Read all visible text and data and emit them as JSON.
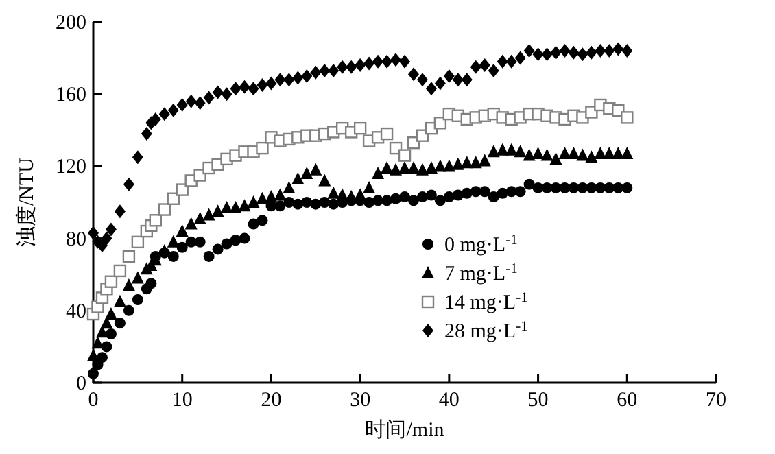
{
  "chart_data": {
    "type": "scatter",
    "xlabel": "时间/min",
    "ylabel": "浊度/NTU",
    "xlim": [
      0,
      70
    ],
    "ylim": [
      0,
      200
    ],
    "xticks": [
      0,
      10,
      20,
      30,
      40,
      50,
      60,
      70
    ],
    "yticks": [
      0,
      40,
      80,
      120,
      160,
      200
    ],
    "legend": "right",
    "grid": false,
    "x": [
      0,
      0.5,
      1,
      1.5,
      2,
      3,
      4,
      5,
      6,
      6.5,
      7,
      8,
      9,
      10,
      11,
      12,
      13,
      14,
      15,
      16,
      17,
      18,
      19,
      20,
      21,
      22,
      23,
      24,
      25,
      26,
      27,
      28,
      29,
      30,
      31,
      32,
      33,
      34,
      35,
      36,
      37,
      38,
      39,
      40,
      41,
      42,
      43,
      44,
      45,
      46,
      47,
      48,
      49,
      50,
      51,
      52,
      53,
      54,
      55,
      56,
      57,
      58,
      59,
      60
    ],
    "series": [
      {
        "name": "0 mg·L$^{-1}$",
        "color": "#000000",
        "marker": "circle",
        "values": [
          5,
          10,
          14,
          20,
          27,
          33,
          40,
          46,
          52,
          55,
          70,
          72,
          70,
          75,
          78,
          78,
          70,
          74,
          77,
          79,
          80,
          88,
          90,
          98,
          98,
          100,
          99,
          100,
          99,
          100,
          99,
          100,
          101,
          101,
          100,
          101,
          101,
          102,
          103,
          101,
          103,
          104,
          101,
          103,
          104,
          105,
          106,
          106,
          103,
          105,
          106,
          106,
          110,
          108,
          108,
          108,
          108,
          108,
          108,
          108,
          108,
          108,
          108,
          108
        ]
      },
      {
        "name": "7 mg·L$^{-1}$",
        "color": "#000000",
        "marker": "triangle",
        "values": [
          15,
          22,
          28,
          33,
          38,
          45,
          54,
          58,
          63,
          65,
          68,
          73,
          78,
          84,
          88,
          91,
          93,
          95,
          97,
          97,
          98,
          100,
          102,
          103,
          104,
          108,
          113,
          116,
          118,
          112,
          105,
          104,
          103,
          104,
          108,
          116,
          119,
          118,
          119,
          119,
          118,
          119,
          120,
          120,
          121,
          122,
          122,
          123,
          128,
          129,
          129,
          128,
          126,
          127,
          126,
          124,
          127,
          127,
          126,
          125,
          127,
          127,
          127,
          127
        ]
      },
      {
        "name": "14 mg·L$^{-1}$",
        "color": "#808080",
        "marker": "square",
        "values": [
          38,
          42,
          47,
          52,
          56,
          62,
          70,
          78,
          84,
          87,
          90,
          96,
          102,
          107,
          112,
          115,
          119,
          121,
          124,
          126,
          128,
          128,
          130,
          136,
          134,
          135,
          136,
          137,
          137,
          138,
          139,
          141,
          139,
          141,
          134,
          136,
          138,
          130,
          126,
          133,
          137,
          141,
          144,
          149,
          148,
          146,
          147,
          148,
          149,
          147,
          146,
          147,
          149,
          149,
          148,
          147,
          146,
          148,
          147,
          150,
          154,
          152,
          151,
          147
        ]
      },
      {
        "name": "28 mg·L$^{-1}$",
        "color": "#000000",
        "marker": "diamond",
        "values": [
          83,
          78,
          76,
          80,
          85,
          95,
          110,
          125,
          138,
          144,
          146,
          149,
          151,
          154,
          156,
          155,
          158,
          161,
          160,
          163,
          164,
          163,
          165,
          166,
          168,
          168,
          169,
          170,
          172,
          173,
          173,
          175,
          175,
          176,
          177,
          178,
          178,
          179,
          178,
          171,
          168,
          163,
          166,
          170,
          168,
          168,
          175,
          176,
          173,
          178,
          178,
          180,
          184,
          182,
          182,
          183,
          184,
          183,
          182,
          183,
          184,
          184,
          185,
          184
        ]
      }
    ]
  }
}
